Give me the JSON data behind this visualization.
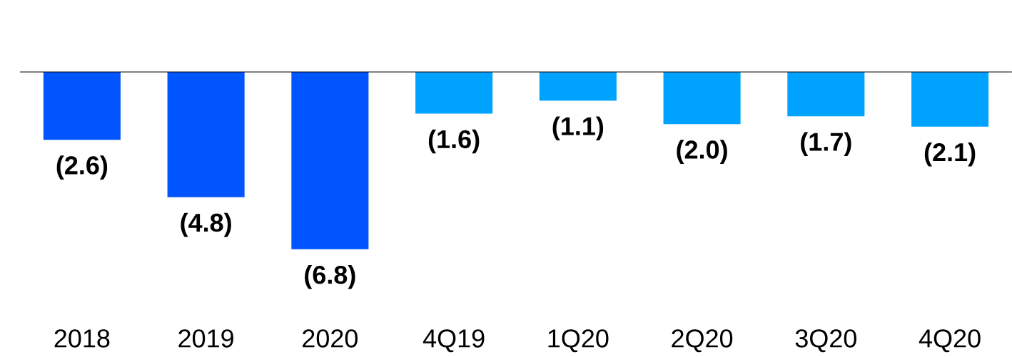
{
  "chart_data": {
    "type": "bar",
    "categories": [
      "2018",
      "2019",
      "2020",
      "4Q19",
      "1Q20",
      "2Q20",
      "3Q20",
      "4Q20"
    ],
    "values": [
      -2.6,
      -4.8,
      -6.8,
      -1.6,
      -1.1,
      -2.0,
      -1.7,
      -2.1
    ],
    "colors": [
      "#0055ff",
      "#0055ff",
      "#0055ff",
      "#00a2ff",
      "#00a2ff",
      "#00a2ff",
      "#00a2ff",
      "#00a2ff"
    ],
    "value_labels": [
      "(2.6)",
      "(4.8)",
      "(6.8)",
      "(1.6)",
      "(1.1)",
      "(2.0)",
      "(1.7)",
      "(2.1)"
    ]
  }
}
